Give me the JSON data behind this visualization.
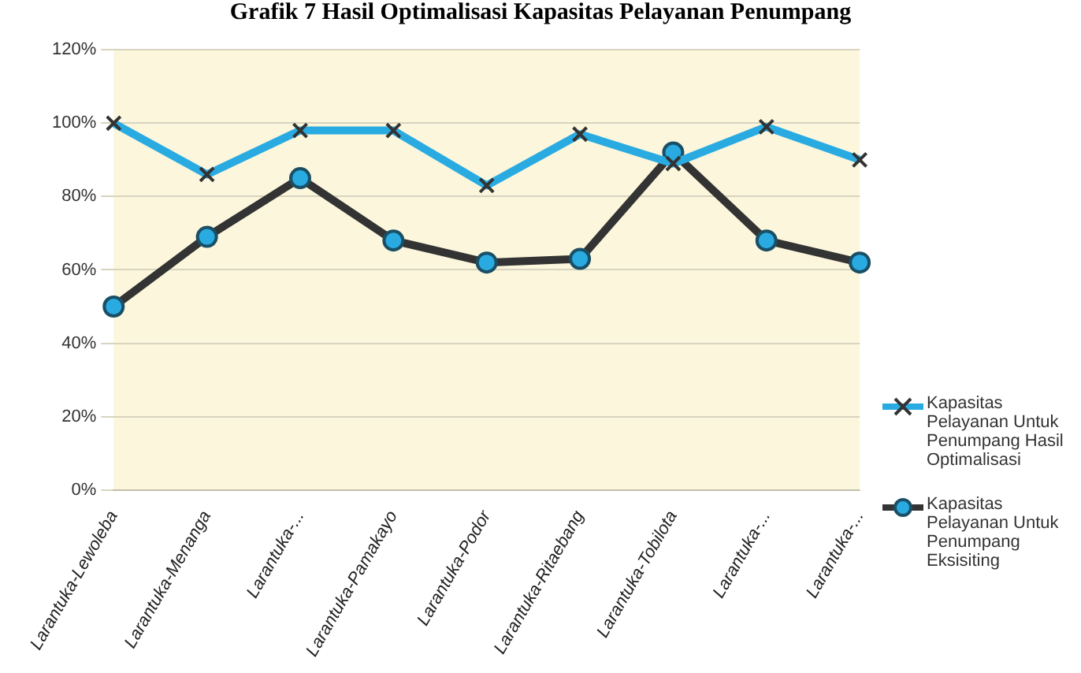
{
  "chart_data": {
    "type": "line",
    "title": "Grafik 7 Hasil Optimalisasi Kapasitas Pelayanan Penumpang",
    "categories": [
      "Larantuka-Lewoleba",
      "Larantuka-Menanga",
      "Larantuka-...",
      "Larantuka-Pamakayo",
      "Larantuka-Podor",
      "Larantuka-Ritaebang",
      "Larantuka-Tobilota",
      "Larantuka-...",
      "Larantuka-..."
    ],
    "series": [
      {
        "name": "Kapasitas Pelayanan Untuk Penumpang Hasil Optimalisasi",
        "color": "#29abe2",
        "marker": "cross",
        "values": [
          100,
          86,
          98,
          98,
          83,
          97,
          89,
          99,
          90
        ]
      },
      {
        "name": "Kapasitas Pelayanan Untuk Penumpang Eksisiting",
        "color": "#333333",
        "marker": "circle",
        "values": [
          50,
          69,
          85,
          68,
          62,
          63,
          92,
          68,
          62
        ]
      }
    ],
    "ylim": [
      0,
      120
    ],
    "yticks": [
      {
        "value": 0,
        "label": "0%"
      },
      {
        "value": 20,
        "label": "20%"
      },
      {
        "value": 40,
        "label": "40%"
      },
      {
        "value": 60,
        "label": "60%"
      },
      {
        "value": 80,
        "label": "80%"
      },
      {
        "value": 100,
        "label": "100%"
      },
      {
        "value": 120,
        "label": "120%"
      }
    ],
    "grid": "y",
    "legend": "right",
    "line_style": "solid"
  }
}
